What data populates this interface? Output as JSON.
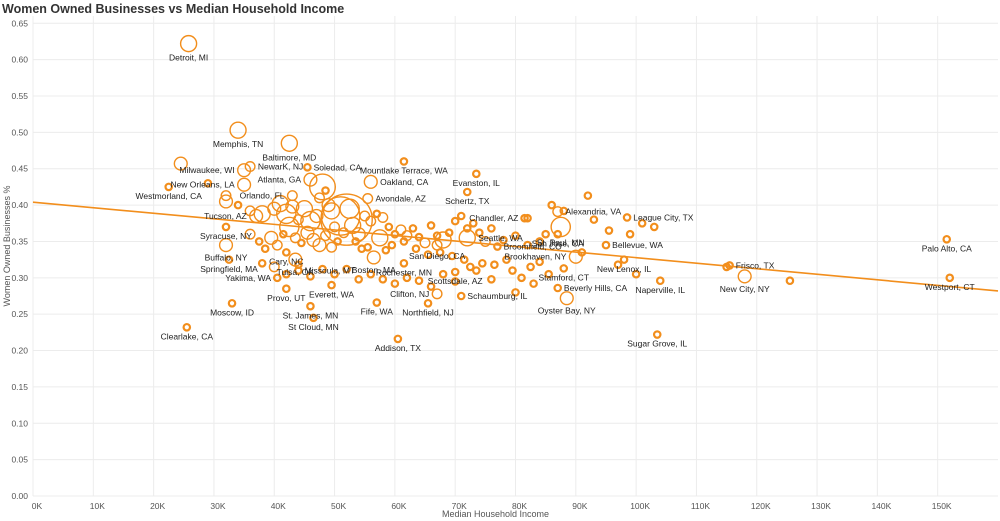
{
  "title": "Women Owned Businesses vs Median Household Income",
  "chart_data": {
    "type": "scatter",
    "title": "Women Owned Businesses vs Median Household Income",
    "xlabel": "Median Household Income",
    "ylabel": "Women Owned Businesses %",
    "xlim": [
      0,
      160000
    ],
    "ylim": [
      0,
      0.66
    ],
    "x_ticks": [
      "0K",
      "10K",
      "20K",
      "30K",
      "40K",
      "50K",
      "60K",
      "70K",
      "80K",
      "90K",
      "100K",
      "110K",
      "120K",
      "130K",
      "140K",
      "150K"
    ],
    "y_ticks": [
      "0.00",
      "0.05",
      "0.10",
      "0.15",
      "0.20",
      "0.25",
      "0.30",
      "0.35",
      "0.40",
      "0.45",
      "0.50",
      "0.55",
      "0.60",
      "0.65"
    ],
    "colors": {
      "marks": "#f28e1c",
      "grid": "#ececec"
    },
    "trend_line": {
      "x": [
        0,
        160000
      ],
      "y": [
        0.404,
        0.282
      ]
    },
    "points": [
      {
        "label": "Detroit, MI",
        "x": 25800,
        "y": 0.622,
        "s": 5,
        "lx": -1,
        "ly": 1
      },
      {
        "label": "Memphis, TN",
        "x": 34000,
        "y": 0.503,
        "s": 5,
        "lx": -1,
        "ly": 1
      },
      {
        "label": "Baltimore, MD",
        "x": 42500,
        "y": 0.485,
        "s": 5,
        "lx": -1,
        "ly": 1
      },
      {
        "label": "NewarK, NJ",
        "x": 36000,
        "y": 0.453,
        "s": 3,
        "lx": 1,
        "ly": 0
      },
      {
        "label": "Milwaukee, WI",
        "x": 35000,
        "y": 0.448,
        "s": 4,
        "lx": -1,
        "ly": 0
      },
      {
        "label": "Soledad, CA",
        "x": 45500,
        "y": 0.452,
        "s": 2,
        "lx": 1,
        "ly": 0
      },
      {
        "label": "Mountlake Terrace, WA",
        "x": 61500,
        "y": 0.46,
        "s": 2,
        "lx": -1,
        "ly": 1
      },
      {
        "label": "Evanston, IL",
        "x": 73500,
        "y": 0.443,
        "s": 2,
        "lx": -1,
        "ly": 1
      },
      {
        "label": "Atlanta, GA",
        "x": 46000,
        "y": 0.435,
        "s": 4,
        "lx": -1,
        "ly": 0
      },
      {
        "label": "Oakland, CA",
        "x": 56000,
        "y": 0.432,
        "s": 4,
        "lx": 1,
        "ly": 0
      },
      {
        "label": "New Orleans, LA",
        "x": 35000,
        "y": 0.428,
        "s": 4,
        "lx": -1,
        "ly": 0
      },
      {
        "label": "Westmorland, CA",
        "x": 22500,
        "y": 0.425,
        "s": 2,
        "lx": -1,
        "ly": 1
      },
      {
        "label": "Orlando, FL",
        "x": 43000,
        "y": 0.413,
        "s": 3,
        "lx": -1,
        "ly": 0
      },
      {
        "label": "Avondale, AZ",
        "x": 55500,
        "y": 0.409,
        "s": 3,
        "lx": 1,
        "ly": 0
      },
      {
        "label": "Schertz, TX",
        "x": 72000,
        "y": 0.418,
        "s": 2,
        "lx": -1,
        "ly": 1
      },
      {
        "label": "Alexandria, VA",
        "x": 87000,
        "y": 0.391,
        "s": 3,
        "lx": 1,
        "ly": 0
      },
      {
        "label": "League City, TX",
        "x": 98500,
        "y": 0.383,
        "s": 2,
        "lx": 1,
        "ly": 0
      },
      {
        "label": "Tucson, AZ",
        "x": 37000,
        "y": 0.385,
        "s": 4,
        "lx": -1,
        "ly": 0
      },
      {
        "label": "Chandler, AZ",
        "x": 81500,
        "y": 0.382,
        "s": 2,
        "lx": -1,
        "ly": 0
      },
      {
        "label": "St. Paul, MN",
        "x": 87500,
        "y": 0.37,
        "s": 6,
        "lx": 1,
        "ly": 1
      },
      {
        "label": "San Jose, CA",
        "x": 87000,
        "y": 0.36,
        "s": 2,
        "lx": 1,
        "ly": 1
      },
      {
        "label": "Syracuse, NY",
        "x": 32000,
        "y": 0.37,
        "s": 2,
        "lx": -1,
        "ly": 1
      },
      {
        "label": "Seattle, WA",
        "x": 72000,
        "y": 0.355,
        "s": 5,
        "lx": 1,
        "ly": 0
      },
      {
        "label": "Bellevue, WA",
        "x": 95000,
        "y": 0.345,
        "s": 2,
        "lx": 1,
        "ly": 0
      },
      {
        "label": "Broomfield, CO",
        "x": 77000,
        "y": 0.343,
        "s": 2,
        "lx": 1,
        "ly": 0
      },
      {
        "label": "Palo Alto, CA",
        "x": 151500,
        "y": 0.353,
        "s": 2,
        "lx": -1,
        "ly": 1
      },
      {
        "label": "Buffalo, NY",
        "x": 32000,
        "y": 0.345,
        "s": 4,
        "lx": -1,
        "ly": 1
      },
      {
        "label": "San Diego, CA",
        "x": 67000,
        "y": 0.345,
        "s": 3,
        "lx": -1,
        "ly": 1
      },
      {
        "label": "Cary, NC",
        "x": 42000,
        "y": 0.335,
        "s": 2,
        "lx": -1,
        "ly": 1
      },
      {
        "label": "Tulsa, OK",
        "x": 43500,
        "y": 0.325,
        "s": 4,
        "lx": 1,
        "ly": 1
      },
      {
        "label": "Brookhaven, NY",
        "x": 90000,
        "y": 0.329,
        "s": 4,
        "lx": -1,
        "ly": 0
      },
      {
        "label": "New Lenox, IL",
        "x": 98000,
        "y": 0.325,
        "s": 2,
        "lx": -1,
        "ly": 1
      },
      {
        "label": "Springfield, MA",
        "x": 32500,
        "y": 0.325,
        "s": 2,
        "lx": -1,
        "ly": 1
      },
      {
        "label": "Boston, MA",
        "x": 56500,
        "y": 0.328,
        "s": 4,
        "lx": 1,
        "ly": 1
      },
      {
        "label": "Frisco, TX",
        "x": 115500,
        "y": 0.317,
        "s": 2,
        "lx": 1,
        "ly": 0
      },
      {
        "label": "Missoula, MT",
        "x": 44000,
        "y": 0.31,
        "s": 2,
        "lx": 1,
        "ly": 0
      },
      {
        "label": "Rochester, MN",
        "x": 61500,
        "y": 0.32,
        "s": 2,
        "lx": 1,
        "ly": 1
      },
      {
        "label": "Stamford, CT",
        "x": 88000,
        "y": 0.313,
        "s": 2,
        "lx": -1,
        "ly": 1
      },
      {
        "label": "New City, NY",
        "x": 118000,
        "y": 0.302,
        "s": 4,
        "lx": -1,
        "ly": 1
      },
      {
        "label": "Yakima, WA",
        "x": 40500,
        "y": 0.3,
        "s": 2,
        "lx": -1,
        "ly": 0
      },
      {
        "label": "Naperville, IL",
        "x": 104000,
        "y": 0.296,
        "s": 2,
        "lx": 1,
        "ly": 1
      },
      {
        "label": "Westport, CT",
        "x": 152000,
        "y": 0.3,
        "s": 2,
        "lx": -1,
        "ly": 1
      },
      {
        "label": "Scottsdale, AZ",
        "x": 70000,
        "y": 0.308,
        "s": 2,
        "lx": -1,
        "ly": 1
      },
      {
        "label": "Beverly Hills, CA",
        "x": 87000,
        "y": 0.286,
        "s": 2,
        "lx": 1,
        "ly": 0
      },
      {
        "label": "Everett, WA",
        "x": 49500,
        "y": 0.29,
        "s": 2,
        "lx": -1,
        "ly": 1
      },
      {
        "label": "Provo, UT",
        "x": 42000,
        "y": 0.285,
        "s": 2,
        "lx": -1,
        "ly": 1
      },
      {
        "label": "Clifton, NJ",
        "x": 67000,
        "y": 0.278,
        "s": 3,
        "lx": -1,
        "ly": 0
      },
      {
        "label": "Schaumburg, IL",
        "x": 71000,
        "y": 0.275,
        "s": 2,
        "lx": 1,
        "ly": 0
      },
      {
        "label": "Oyster Bay, NY",
        "x": 88500,
        "y": 0.272,
        "s": 4,
        "lx": -1,
        "ly": 1
      },
      {
        "label": "Fife, WA",
        "x": 57000,
        "y": 0.266,
        "s": 2,
        "lx": -1,
        "ly": 1
      },
      {
        "label": "Northfield, NJ",
        "x": 65500,
        "y": 0.265,
        "s": 2,
        "lx": -1,
        "ly": 1
      },
      {
        "label": "Moscow, ID",
        "x": 33000,
        "y": 0.265,
        "s": 2,
        "lx": -1,
        "ly": 1
      },
      {
        "label": "St. James, MN",
        "x": 46000,
        "y": 0.261,
        "s": 2,
        "lx": -1,
        "ly": 1
      },
      {
        "label": "St Cloud, MN",
        "x": 46500,
        "y": 0.245,
        "s": 2,
        "lx": -1,
        "ly": 1
      },
      {
        "label": "Clearlake, CA",
        "x": 25500,
        "y": 0.232,
        "s": 2,
        "lx": -1,
        "ly": 1
      },
      {
        "label": "Sugar Grove, IL",
        "x": 103500,
        "y": 0.222,
        "s": 2,
        "lx": -1,
        "ly": 1
      },
      {
        "label": "Addison, TX",
        "x": 60500,
        "y": 0.216,
        "s": 2,
        "lx": -1,
        "ly": 1
      }
    ],
    "unlabeled_points": [
      [
        24500,
        0.457,
        4
      ],
      [
        29000,
        0.43,
        2
      ],
      [
        32000,
        0.413,
        3
      ],
      [
        32000,
        0.405,
        4
      ],
      [
        34000,
        0.4,
        2
      ],
      [
        36000,
        0.392,
        3
      ],
      [
        38000,
        0.388,
        5
      ],
      [
        40000,
        0.395,
        4
      ],
      [
        41000,
        0.402,
        5
      ],
      [
        42000,
        0.388,
        6
      ],
      [
        43000,
        0.398,
        4
      ],
      [
        44000,
        0.38,
        3
      ],
      [
        45000,
        0.395,
        5
      ],
      [
        46000,
        0.378,
        6
      ],
      [
        47000,
        0.385,
        4
      ],
      [
        47500,
        0.41,
        3
      ],
      [
        48000,
        0.425,
        8
      ],
      [
        48500,
        0.42,
        2
      ],
      [
        49000,
        0.4,
        4
      ],
      [
        49500,
        0.392,
        5
      ],
      [
        50000,
        0.37,
        3
      ],
      [
        51000,
        0.385,
        12
      ],
      [
        52000,
        0.38,
        16
      ],
      [
        52500,
        0.395,
        6
      ],
      [
        53000,
        0.372,
        5
      ],
      [
        54000,
        0.36,
        4
      ],
      [
        55000,
        0.385,
        3
      ],
      [
        56000,
        0.378,
        3
      ],
      [
        57000,
        0.388,
        2
      ],
      [
        58000,
        0.383,
        3
      ],
      [
        59000,
        0.37,
        2
      ],
      [
        60000,
        0.36,
        2
      ],
      [
        61000,
        0.366,
        3
      ],
      [
        62000,
        0.358,
        3
      ],
      [
        63000,
        0.368,
        2
      ],
      [
        64000,
        0.356,
        2
      ],
      [
        65000,
        0.348,
        3
      ],
      [
        66000,
        0.372,
        2
      ],
      [
        67000,
        0.358,
        2
      ],
      [
        68000,
        0.352,
        5
      ],
      [
        69000,
        0.362,
        2
      ],
      [
        70000,
        0.378,
        2
      ],
      [
        71000,
        0.385,
        2
      ],
      [
        72000,
        0.368,
        2
      ],
      [
        73000,
        0.375,
        2
      ],
      [
        74000,
        0.362,
        2
      ],
      [
        75000,
        0.35,
        3
      ],
      [
        76000,
        0.368,
        2
      ],
      [
        78000,
        0.352,
        2
      ],
      [
        80000,
        0.358,
        2
      ],
      [
        82000,
        0.345,
        2
      ],
      [
        84000,
        0.35,
        2
      ],
      [
        85000,
        0.36,
        2
      ],
      [
        36000,
        0.36,
        3
      ],
      [
        37500,
        0.35,
        2
      ],
      [
        38500,
        0.34,
        2
      ],
      [
        39500,
        0.355,
        4
      ],
      [
        40500,
        0.345,
        3
      ],
      [
        41500,
        0.36,
        2
      ],
      [
        42500,
        0.37,
        6
      ],
      [
        43500,
        0.355,
        3
      ],
      [
        44500,
        0.348,
        2
      ],
      [
        45500,
        0.362,
        4
      ],
      [
        46500,
        0.352,
        4
      ],
      [
        47500,
        0.345,
        4
      ],
      [
        48500,
        0.358,
        3
      ],
      [
        49500,
        0.342,
        3
      ],
      [
        50500,
        0.35,
        2
      ],
      [
        51500,
        0.362,
        3
      ],
      [
        53500,
        0.35,
        2
      ],
      [
        54500,
        0.34,
        2
      ],
      [
        55500,
        0.342,
        2
      ],
      [
        57500,
        0.355,
        5
      ],
      [
        58500,
        0.338,
        2
      ],
      [
        59500,
        0.345,
        2
      ],
      [
        61500,
        0.35,
        2
      ],
      [
        63500,
        0.34,
        2
      ],
      [
        65500,
        0.332,
        2
      ],
      [
        67500,
        0.335,
        2
      ],
      [
        69500,
        0.33,
        2
      ],
      [
        71500,
        0.325,
        2
      ],
      [
        72500,
        0.315,
        2
      ],
      [
        73500,
        0.31,
        2
      ],
      [
        74500,
        0.32,
        2
      ],
      [
        76500,
        0.318,
        2
      ],
      [
        78500,
        0.325,
        2
      ],
      [
        79500,
        0.31,
        2
      ],
      [
        81000,
        0.3,
        2
      ],
      [
        82500,
        0.315,
        2
      ],
      [
        84000,
        0.322,
        2
      ],
      [
        85500,
        0.305,
        2
      ],
      [
        38000,
        0.32,
        2
      ],
      [
        40000,
        0.315,
        3
      ],
      [
        42000,
        0.305,
        2
      ],
      [
        44000,
        0.318,
        2
      ],
      [
        46000,
        0.302,
        2
      ],
      [
        48000,
        0.312,
        2
      ],
      [
        50000,
        0.305,
        2
      ],
      [
        52000,
        0.312,
        2
      ],
      [
        54000,
        0.298,
        2
      ],
      [
        56000,
        0.305,
        2
      ],
      [
        58000,
        0.298,
        2
      ],
      [
        60000,
        0.292,
        2
      ],
      [
        62000,
        0.3,
        2
      ],
      [
        64000,
        0.296,
        2
      ],
      [
        66000,
        0.288,
        2
      ],
      [
        68000,
        0.305,
        2
      ],
      [
        70000,
        0.295,
        2
      ],
      [
        76000,
        0.298,
        2
      ],
      [
        80000,
        0.28,
        2
      ],
      [
        83000,
        0.292,
        2
      ],
      [
        91000,
        0.335,
        2
      ],
      [
        92000,
        0.413,
        2
      ],
      [
        93000,
        0.38,
        2
      ],
      [
        95500,
        0.365,
        2
      ],
      [
        99000,
        0.36,
        2
      ],
      [
        101000,
        0.375,
        2
      ],
      [
        103000,
        0.37,
        2
      ],
      [
        97000,
        0.318,
        2
      ],
      [
        100000,
        0.305,
        2
      ],
      [
        125500,
        0.296,
        2
      ],
      [
        115000,
        0.315,
        2
      ],
      [
        86000,
        0.4,
        2
      ],
      [
        82000,
        0.382,
        2
      ],
      [
        88000,
        0.392,
        2
      ]
    ]
  }
}
